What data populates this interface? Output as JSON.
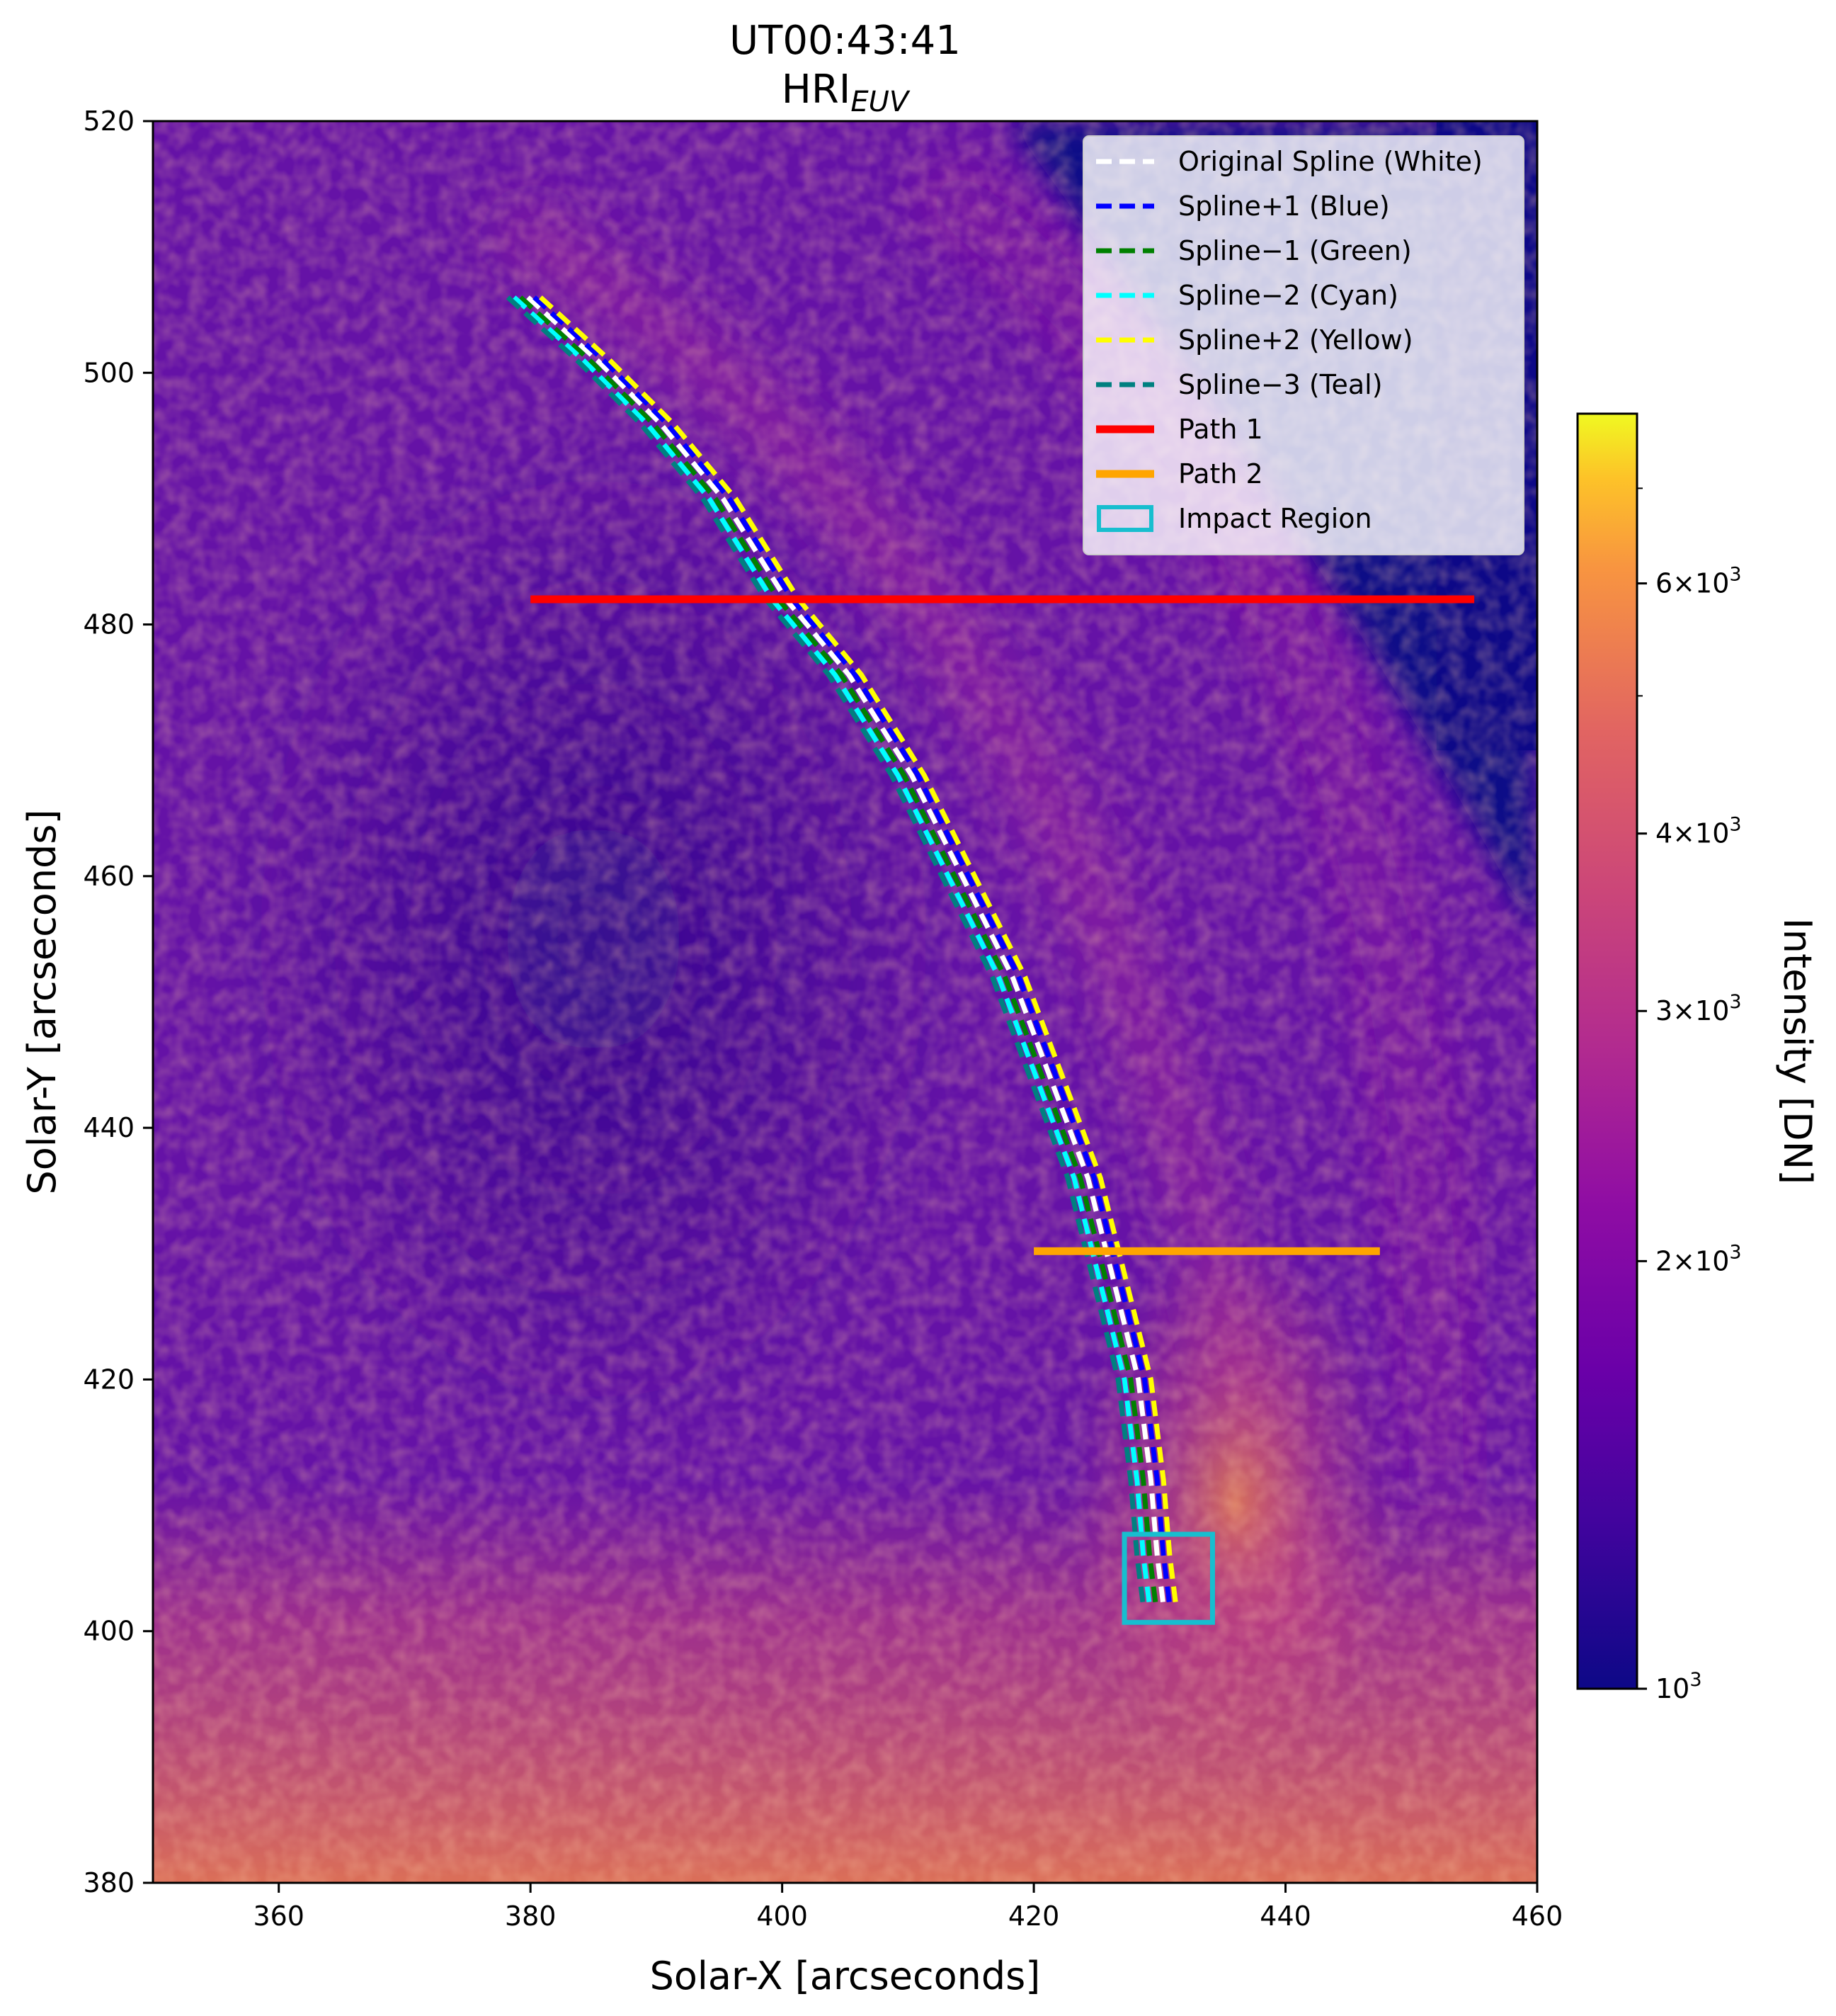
{
  "chart_data": {
    "type": "image",
    "title": "UT00:43:41",
    "subtitle": {
      "base": "HRI",
      "subscript": "EUV"
    },
    "xlabel": "Solar-X [arcseconds]",
    "ylabel": "Solar-Y [arcseconds]",
    "xlim": [
      350,
      460
    ],
    "ylim": [
      380,
      520
    ],
    "xticks": [
      360,
      380,
      400,
      420,
      440,
      460
    ],
    "yticks": [
      380,
      400,
      420,
      440,
      460,
      480,
      500,
      520
    ],
    "background_colormap": "plasma",
    "grid": false,
    "legend_position": "upper right",
    "colorbar": {
      "label": "Intensity [DN]",
      "scale": "log",
      "range": [
        1000,
        7900
      ],
      "ticks": [
        {
          "value": 1000,
          "base": "10",
          "exp": "3"
        },
        {
          "value": 2000,
          "base": "2×10",
          "exp": "3"
        },
        {
          "value": 3000,
          "base": "3×10",
          "exp": "3"
        },
        {
          "value": 4000,
          "base": "4×10",
          "exp": "3"
        },
        {
          "value": 6000,
          "base": "6×10",
          "exp": "3"
        }
      ],
      "minor_ticks": [
        5000,
        7000
      ]
    },
    "splines": [
      {
        "label": "Original Spline (White)",
        "color": "#ffffff",
        "x_offset": 0.3
      },
      {
        "label": "Spline+1 (Blue)",
        "color": "#0000ff",
        "x_offset": 0.8
      },
      {
        "label": "Spline−1 (Green)",
        "color": "#008000",
        "x_offset": -0.3
      },
      {
        "label": "Spline−2 (Cyan)",
        "color": "#00ffff",
        "x_offset": -0.8
      },
      {
        "label": "Spline+2 (Yellow)",
        "color": "#ffff00",
        "x_offset": 1.3
      },
      {
        "label": "Spline−3 (Teal)",
        "color": "#008080",
        "x_offset": -1.3
      }
    ],
    "spline_base": {
      "x": [
        379.5,
        385,
        390,
        395,
        400,
        405,
        410,
        414,
        418,
        421,
        424,
        426,
        428,
        429,
        429.5,
        430
      ],
      "y": [
        506,
        501,
        496,
        490,
        482,
        476,
        468,
        460,
        452,
        444,
        436,
        428,
        420,
        412,
        406,
        402
      ]
    },
    "paths": [
      {
        "label": "Path 1",
        "color": "#ff0000",
        "x": [
          380,
          455
        ],
        "y": [
          482,
          482
        ]
      },
      {
        "label": "Path 2",
        "color": "#ffa500",
        "x": [
          420,
          447.5
        ],
        "y": [
          430.2,
          430.2
        ]
      }
    ],
    "impact_region": {
      "label": "Impact Region",
      "color": "#17becf",
      "x": [
        427.2,
        434.2
      ],
      "y": [
        400.7,
        407.7
      ]
    }
  }
}
